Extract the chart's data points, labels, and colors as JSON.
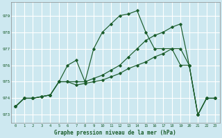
{
  "background_color": "#cde8f0",
  "grid_color": "#ffffff",
  "line_color": "#1a5c2a",
  "title": "Graphe pression niveau de la mer (hPa)",
  "xlim": [
    -0.5,
    23.5
  ],
  "ylim": [
    972.5,
    979.8
  ],
  "yticks": [
    973,
    974,
    975,
    976,
    977,
    978,
    979
  ],
  "xticks": [
    0,
    1,
    2,
    3,
    4,
    5,
    6,
    7,
    8,
    9,
    10,
    11,
    12,
    13,
    14,
    15,
    16,
    17,
    18,
    19,
    20,
    21,
    22,
    23
  ],
  "series": [
    {
      "x": [
        0,
        1,
        2,
        3,
        4,
        5,
        6,
        7,
        8,
        9,
        10,
        11,
        12,
        13,
        14,
        15,
        16,
        17,
        18,
        19,
        20,
        21,
        22,
        23
      ],
      "y": [
        973.5,
        974.0,
        974.0,
        974.1,
        974.2,
        975.0,
        975.0,
        974.8,
        974.9,
        975.0,
        975.1,
        975.3,
        975.5,
        975.8,
        976.0,
        976.2,
        976.5,
        976.7,
        977.0,
        977.0,
        976.0,
        973.0,
        974.0,
        974.0
      ]
    },
    {
      "x": [
        0,
        1,
        2,
        3,
        4,
        5,
        6,
        7,
        8,
        9,
        10,
        11,
        12,
        13,
        14,
        15,
        16,
        17,
        18,
        19,
        20,
        21,
        22,
        23
      ],
      "y": [
        973.5,
        974.0,
        974.0,
        974.1,
        974.2,
        975.0,
        976.0,
        976.3,
        975.0,
        977.0,
        978.0,
        978.5,
        979.0,
        979.1,
        979.3,
        978.0,
        977.0,
        977.0,
        977.0,
        976.0,
        976.0,
        973.0,
        974.0,
        974.0
      ]
    },
    {
      "x": [
        0,
        1,
        2,
        3,
        4,
        5,
        6,
        7,
        8,
        9,
        10,
        11,
        12,
        13,
        14,
        15,
        16,
        17,
        18,
        19,
        20,
        21,
        22,
        23
      ],
      "y": [
        973.5,
        974.0,
        974.0,
        974.1,
        974.2,
        975.0,
        975.0,
        975.0,
        975.0,
        975.2,
        975.4,
        975.7,
        976.0,
        976.5,
        977.0,
        977.5,
        977.8,
        978.0,
        978.3,
        978.5,
        976.0,
        973.0,
        974.0,
        974.0
      ]
    }
  ]
}
